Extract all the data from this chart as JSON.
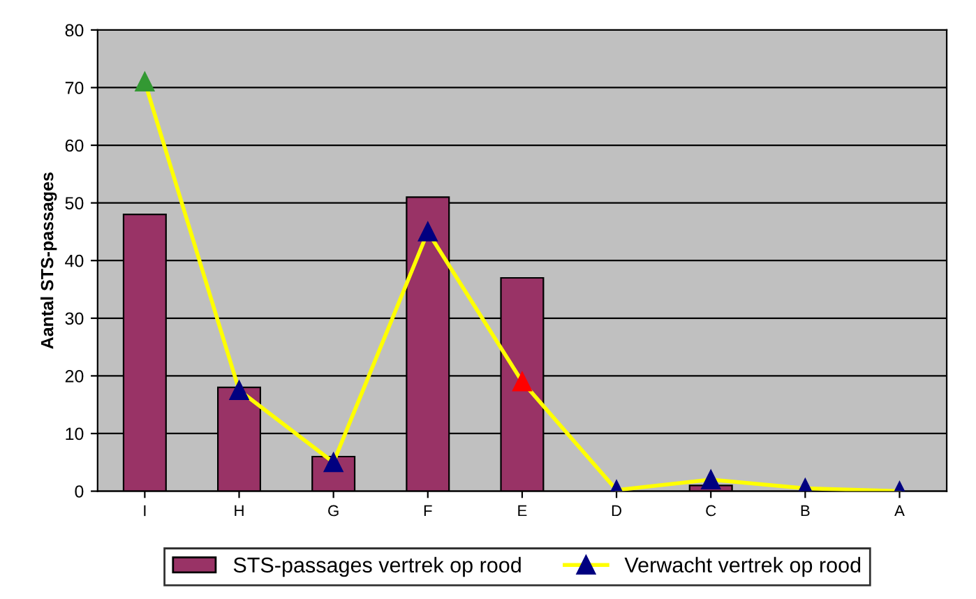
{
  "chart_data": {
    "type": "bar",
    "ylabel": "Aantal STS-passages",
    "categories": [
      "I",
      "H",
      "G",
      "F",
      "E",
      "D",
      "C",
      "B",
      "A"
    ],
    "series": [
      {
        "name": "STS-passages vertrek op rood",
        "color": "#993366",
        "values": [
          48,
          18,
          6,
          51,
          37,
          0,
          1,
          0,
          0
        ]
      },
      {
        "name": "Verwacht vertrek op rood",
        "type": "line",
        "color": "#ffff00",
        "marker": "triangle",
        "colors": [
          "#339933",
          "#000080",
          "#000080",
          "#000080",
          "#ff0000",
          "#000080",
          "#000080",
          "#000080",
          "#000080"
        ],
        "values": [
          71,
          17.5,
          5,
          45,
          19,
          0.2,
          2,
          0.5,
          0
        ]
      }
    ],
    "ylim": [
      0,
      80
    ],
    "yticks": [
      0,
      10,
      20,
      30,
      40,
      50,
      60,
      70,
      80
    ],
    "grid": "y",
    "legend": "bottom"
  }
}
